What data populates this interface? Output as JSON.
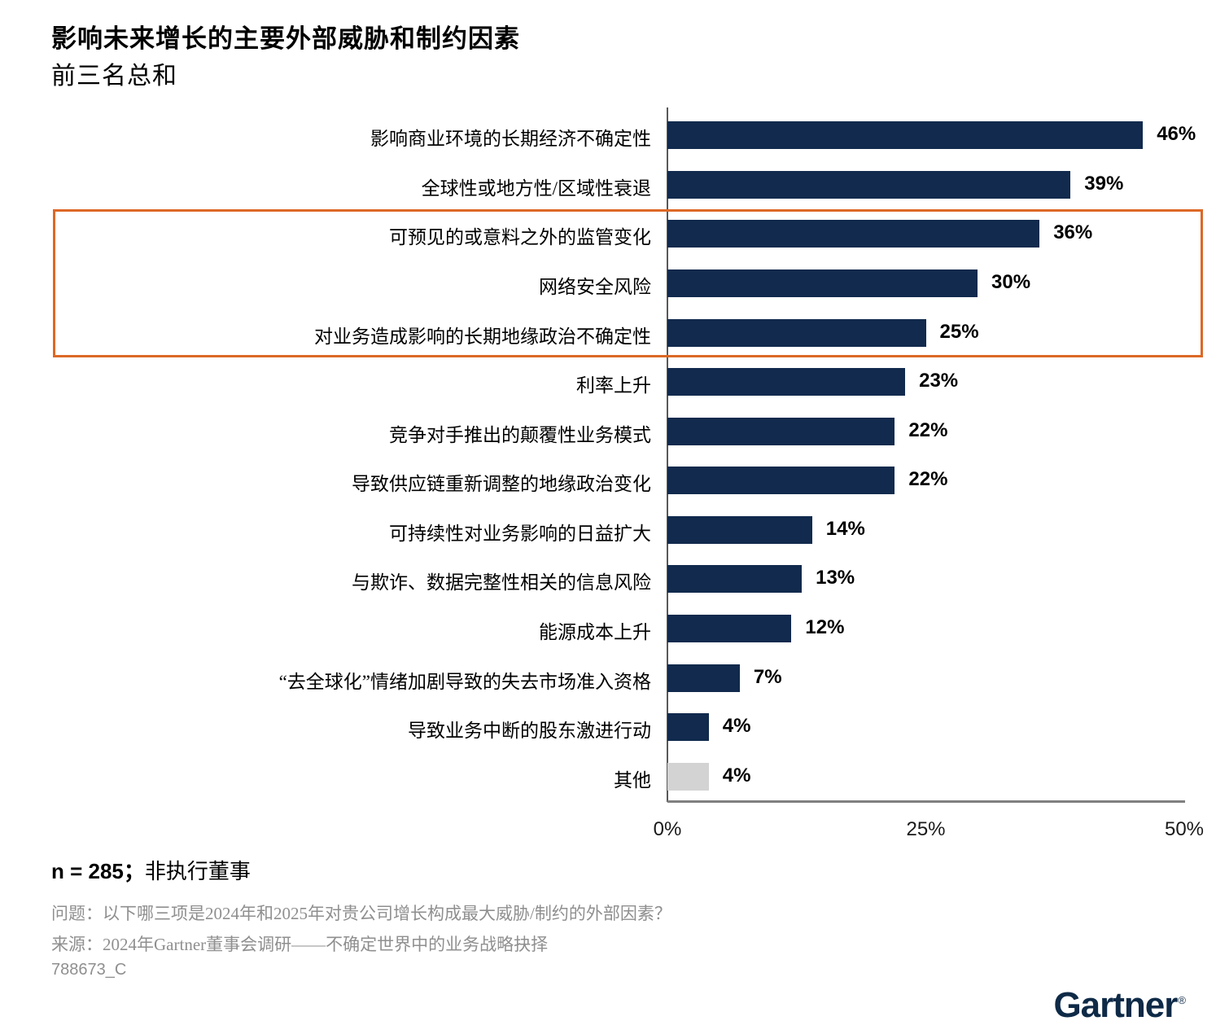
{
  "header": {
    "title": "影响未来增长的主要外部威胁和制约因素",
    "subtitle": "前三名总和"
  },
  "chart_data": {
    "type": "bar",
    "orientation": "horizontal",
    "title": "影响未来增长的主要外部威胁和制约因素（前三名总和）",
    "categories": [
      "影响商业环境的长期经济不确定性",
      "全球性或地方性/区域性衰退",
      "可预见的或意料之外的监管变化",
      "网络安全风险",
      "对业务造成影响的长期地缘政治不确定性",
      "利率上升",
      "竞争对手推出的颠覆性业务模式",
      "导致供应链重新调整的地缘政治变化",
      "可持续性对业务影响的日益扩大",
      "与欺诈、数据完整性相关的信息风险",
      "能源成本上升",
      "“去全球化”情绪加剧导致的失去市场准入资格",
      "导致业务中断的股东激进行动",
      "其他"
    ],
    "values": [
      46,
      39,
      36,
      30,
      25,
      23,
      22,
      22,
      14,
      13,
      12,
      7,
      4,
      4
    ],
    "value_labels": [
      "46%",
      "39%",
      "36%",
      "30%",
      "25%",
      "23%",
      "22%",
      "22%",
      "14%",
      "13%",
      "12%",
      "7%",
      "4%",
      "4%"
    ],
    "xlim": [
      0,
      50
    ],
    "x_ticks": [
      {
        "label": "0%",
        "value": 0
      },
      {
        "label": "25%",
        "value": 25
      },
      {
        "label": "50%",
        "value": 50
      }
    ],
    "grid": false,
    "legend": "none",
    "bar_color": "#112a4d",
    "other_bar_color": "#d3d3d3",
    "highlight": {
      "first_row": 2,
      "last_row": 4,
      "color": "#dd6826"
    }
  },
  "footer": {
    "sample_n": "n = 285；",
    "sample_desc": "非执行董事",
    "question": "问题：以下哪三项是2024年和2025年对贵公司增长构成最大威胁/制约的外部因素？",
    "source": "来源：2024年Gartner董事会调研——不确定世界中的业务战略抉择",
    "doc_id": "788673_C"
  },
  "logo": {
    "text": "Gartner",
    "registered": "®"
  }
}
